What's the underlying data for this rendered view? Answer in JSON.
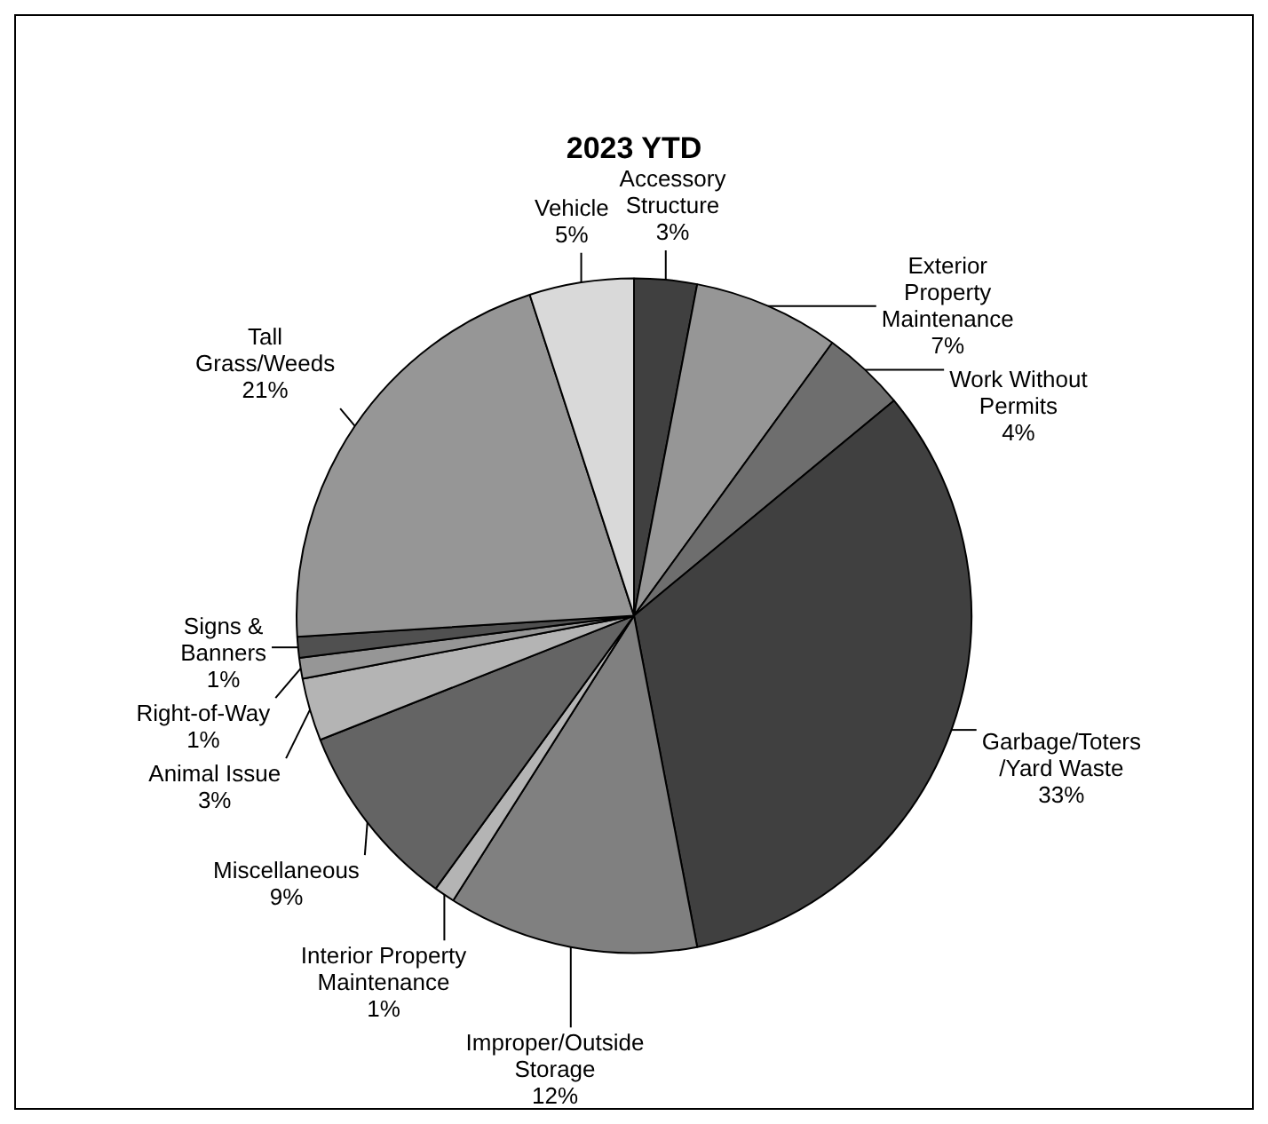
{
  "chart_data": {
    "type": "pie",
    "title": "2023 YTD",
    "categories": [
      "Accessory Structure",
      "Exterior Property Maintenance",
      "Work Without Permits",
      "Garbage/Toters /Yard Waste",
      "Improper/Outside Storage",
      "Interior Property Maintenance",
      "Miscellaneous",
      "Animal Issue",
      "Right-of-Way",
      "Signs & Banners",
      "Tall Grass/Weeds",
      "Vehicle"
    ],
    "values": [
      3,
      7,
      4,
      33,
      12,
      1,
      9,
      3,
      1,
      1,
      21,
      5
    ],
    "colors": [
      "#404040",
      "#969696",
      "#6e6e6e",
      "#404040",
      "#808080",
      "#b4b4b4",
      "#646464",
      "#b4b4b4",
      "#969696",
      "#505050",
      "#969696",
      "#d9d9d9"
    ],
    "value_labels": [
      "3%",
      "7%",
      "4%",
      "33%",
      "12%",
      "1%",
      "9%",
      "3%",
      "1%",
      "1%",
      "21%",
      "5%"
    ],
    "legend": false
  }
}
